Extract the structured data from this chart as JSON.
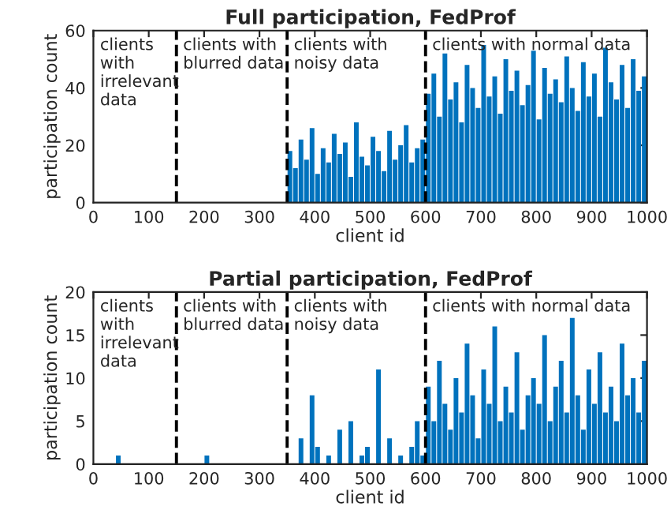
{
  "chart_data": [
    {
      "type": "bar",
      "title": "Full participation, FedProf",
      "xlabel": "client id",
      "ylabel": "participation count",
      "xlim": [
        0,
        1000
      ],
      "xticks": [
        0,
        100,
        200,
        300,
        400,
        500,
        600,
        700,
        800,
        900,
        1000
      ],
      "ylim": [
        0,
        60
      ],
      "yticks": [
        0,
        20,
        40,
        60
      ],
      "grid": false,
      "legend": false,
      "x": [
        355,
        365,
        375,
        385,
        395,
        405,
        415,
        425,
        435,
        445,
        455,
        465,
        475,
        485,
        495,
        505,
        515,
        525,
        535,
        545,
        555,
        565,
        575,
        585,
        595,
        605,
        615,
        625,
        635,
        645,
        655,
        665,
        675,
        685,
        695,
        705,
        715,
        725,
        735,
        745,
        755,
        765,
        775,
        785,
        795,
        805,
        815,
        825,
        835,
        845,
        855,
        865,
        875,
        885,
        895,
        905,
        915,
        925,
        935,
        945,
        955,
        965,
        975,
        985,
        995
      ],
      "series": [
        {
          "color": "#0072bd",
          "values": [
            18,
            12,
            22,
            15,
            26,
            10,
            19,
            14,
            24,
            17,
            21,
            9,
            28,
            16,
            13,
            23,
            18,
            11,
            25,
            15,
            20,
            27,
            14,
            19,
            22,
            38,
            45,
            30,
            52,
            36,
            42,
            28,
            48,
            40,
            33,
            55,
            37,
            44,
            31,
            50,
            39,
            46,
            34,
            41,
            53,
            29,
            47,
            38,
            43,
            35,
            51,
            40,
            32,
            49,
            37,
            45,
            30,
            54,
            42,
            36,
            48,
            33,
            50,
            39,
            44
          ]
        }
      ],
      "ref_lines": [
        {
          "axis": "x",
          "value": 150,
          "line_style": "dashed",
          "color": "#000000"
        },
        {
          "axis": "x",
          "value": 350,
          "line_style": "dashed",
          "color": "#000000"
        },
        {
          "axis": "x",
          "value": 600,
          "line_style": "dashed",
          "color": "#000000"
        }
      ],
      "annotations": [
        "clients\nwith\nirrelevant\ndata",
        "clients with\nblurred data",
        "clients with\nnoisy data",
        "clients with normal data"
      ]
    },
    {
      "type": "bar",
      "title": "Partial participation, FedProf",
      "xlabel": "client id",
      "ylabel": "participation count",
      "xlim": [
        0,
        1000
      ],
      "xticks": [
        0,
        100,
        200,
        300,
        400,
        500,
        600,
        700,
        800,
        900,
        1000
      ],
      "ylim": [
        0,
        20
      ],
      "yticks": [
        0,
        5,
        10,
        15,
        20
      ],
      "grid": false,
      "legend": false,
      "x": [
        45,
        205,
        355,
        365,
        375,
        385,
        395,
        405,
        415,
        425,
        435,
        445,
        455,
        465,
        475,
        485,
        495,
        505,
        515,
        525,
        535,
        545,
        555,
        565,
        575,
        585,
        595,
        605,
        615,
        625,
        635,
        645,
        655,
        665,
        675,
        685,
        695,
        705,
        715,
        725,
        735,
        745,
        755,
        765,
        775,
        785,
        795,
        805,
        815,
        825,
        835,
        845,
        855,
        865,
        875,
        885,
        895,
        905,
        915,
        925,
        935,
        945,
        955,
        965,
        975,
        985,
        995
      ],
      "series": [
        {
          "color": "#0072bd",
          "values": [
            1,
            1,
            0,
            0,
            3,
            0,
            8,
            2,
            0,
            1,
            0,
            4,
            0,
            5,
            0,
            1,
            2,
            0,
            11,
            0,
            3,
            0,
            1,
            0,
            2,
            5,
            1,
            9,
            5,
            12,
            7,
            4,
            10,
            6,
            14,
            8,
            3,
            11,
            7,
            16,
            5,
            9,
            6,
            13,
            4,
            8,
            10,
            7,
            15,
            5,
            9,
            12,
            6,
            17,
            8,
            4,
            11,
            7,
            13,
            6,
            9,
            5,
            14,
            8,
            10,
            6,
            12
          ]
        }
      ],
      "ref_lines": [
        {
          "axis": "x",
          "value": 150,
          "line_style": "dashed",
          "color": "#000000"
        },
        {
          "axis": "x",
          "value": 350,
          "line_style": "dashed",
          "color": "#000000"
        },
        {
          "axis": "x",
          "value": 600,
          "line_style": "dashed",
          "color": "#000000"
        }
      ],
      "annotations": [
        "clients\nwith\nirrelevant\ndata",
        "clients with\nblurred data",
        "clients with\nnoisy data",
        "clients with normal data"
      ]
    }
  ]
}
